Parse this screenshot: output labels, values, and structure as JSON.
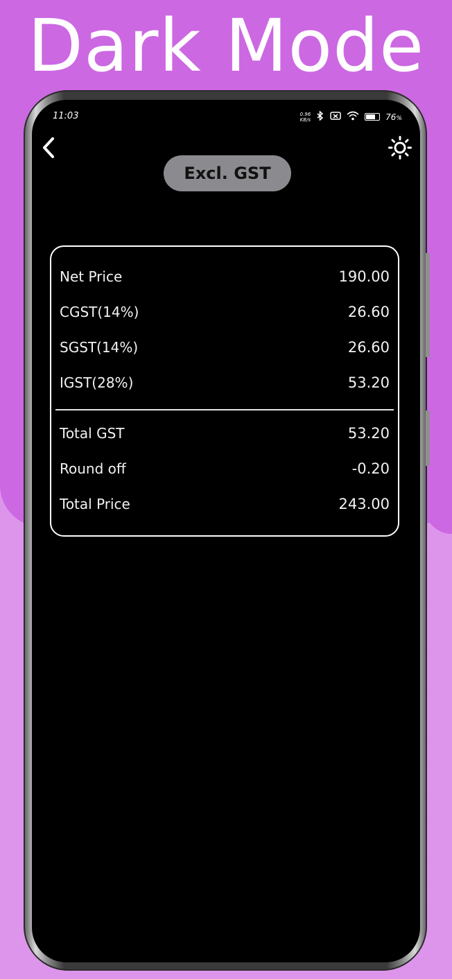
{
  "banner": {
    "title": "Dark Mode"
  },
  "status_bar": {
    "time": "11:03",
    "net_speed_value": "0.96",
    "net_speed_unit": "KB/s",
    "battery": "76",
    "battery_unit": "%"
  },
  "header": {
    "back_icon": "chevron-left-icon",
    "theme_icon": "sun-icon",
    "mode_label": "Excl. GST"
  },
  "summary": {
    "rows": [
      {
        "label": "Net Price",
        "value": "190.00"
      },
      {
        "label": "CGST(14%)",
        "value": "26.60"
      },
      {
        "label": "SGST(14%)",
        "value": "26.60"
      },
      {
        "label": "IGST(28%)",
        "value": "53.20"
      }
    ],
    "totals": [
      {
        "label": "Total GST",
        "value": "53.20"
      },
      {
        "label": "Round off",
        "value": "-0.20"
      },
      {
        "label": "Total Price",
        "value": "243.00"
      }
    ]
  },
  "colors": {
    "banner_bg": "#cc68e2",
    "page_bg": "#dd95ec",
    "screen_bg": "#000000",
    "pill_bg": "#8a8a8f"
  }
}
